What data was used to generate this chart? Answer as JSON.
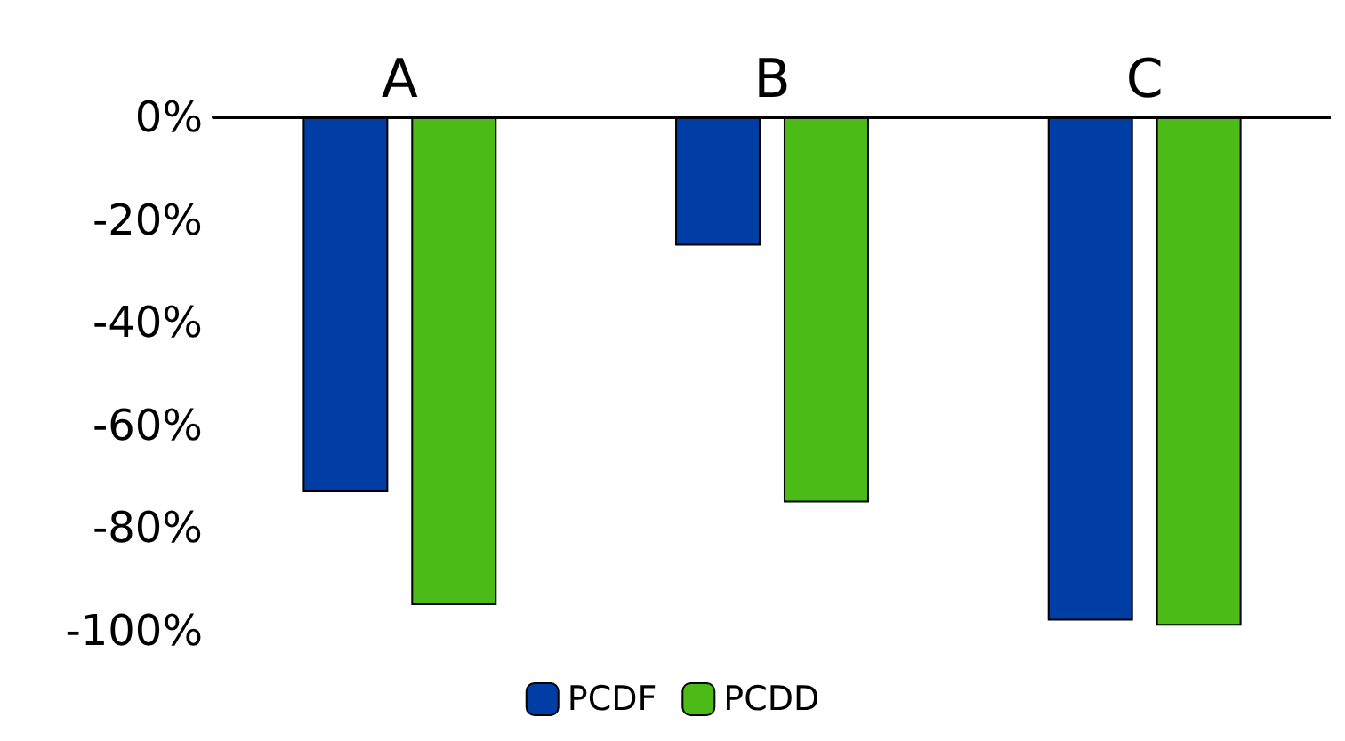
{
  "chart_data": {
    "type": "bar",
    "categories": [
      "A",
      "B",
      "C"
    ],
    "series": [
      {
        "name": "PCDF",
        "color": "#003da5",
        "values": [
          -73,
          -25,
          -98
        ]
      },
      {
        "name": "PCDD",
        "color": "#4cbb17",
        "values": [
          -95,
          -75,
          -99
        ]
      }
    ],
    "ylim": [
      -100,
      0
    ],
    "yticks": [
      {
        "value": -100,
        "label": "-100%"
      },
      {
        "value": -80,
        "label": "-80%"
      },
      {
        "value": -60,
        "label": "-60%"
      },
      {
        "value": -40,
        "label": "-40%"
      },
      {
        "value": -20,
        "label": "-20%"
      },
      {
        "value": 0,
        "label": "0%"
      }
    ],
    "grid": false,
    "legend": "bottom"
  }
}
